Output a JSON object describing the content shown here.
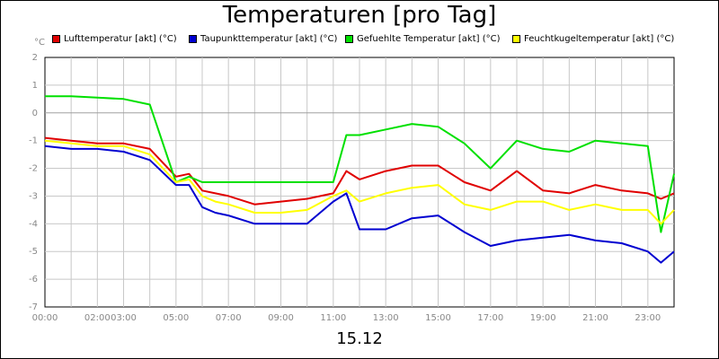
{
  "chart_data": {
    "type": "line",
    "title": "Temperaturen [pro Tag]",
    "xlabel": "15.12",
    "ylabel": "°C",
    "ylim": [
      -7,
      2
    ],
    "y_ticks": [
      "2",
      "1",
      "0",
      "-1",
      "-2",
      "-3",
      "-4",
      "-5",
      "-6",
      "-7"
    ],
    "x_ticks": [
      "00:00",
      "02:00",
      "03:00",
      "05:00",
      "07:00",
      "09:00",
      "11:00",
      "13:00",
      "15:00",
      "17:00",
      "19:00",
      "21:00",
      "23:00"
    ],
    "x_tick_hours": [
      0,
      2,
      3,
      5,
      7,
      9,
      11,
      13,
      15,
      17,
      19,
      21,
      23
    ],
    "xlim": [
      0,
      24
    ],
    "grid": true,
    "legend_position": "top",
    "x": [
      0,
      1,
      2,
      3,
      4,
      5,
      5.5,
      6,
      6.5,
      7,
      8,
      9,
      10,
      11,
      11.5,
      12,
      13,
      14,
      15,
      16,
      17,
      18,
      19,
      20,
      21,
      22,
      23,
      23.5,
      24
    ],
    "series": [
      {
        "name": "Lufttemperatur [akt] (°C)",
        "color": "#e00000",
        "values": [
          -0.9,
          -1.0,
          -1.1,
          -1.1,
          -1.3,
          -2.3,
          -2.2,
          -2.8,
          -2.9,
          -3.0,
          -3.3,
          -3.2,
          -3.1,
          -2.9,
          -2.1,
          -2.4,
          -2.1,
          -1.9,
          -1.9,
          -2.5,
          -2.8,
          -2.1,
          -2.8,
          -2.9,
          -2.6,
          -2.8,
          -2.9,
          -3.1,
          -2.9
        ]
      },
      {
        "name": "Taupunkttemperatur [akt] (°C)",
        "color": "#0000d0",
        "values": [
          -1.2,
          -1.3,
          -1.3,
          -1.4,
          -1.7,
          -2.6,
          -2.6,
          -3.4,
          -3.6,
          -3.7,
          -4.0,
          -4.0,
          -4.0,
          -3.2,
          -2.9,
          -4.2,
          -4.2,
          -3.8,
          -3.7,
          -4.3,
          -4.8,
          -4.6,
          -4.5,
          -4.4,
          -4.6,
          -4.7,
          -5.0,
          -5.4,
          -5.0
        ]
      },
      {
        "name": "Gefuehlte Temperatur [akt] (°C)",
        "color": "#00e000",
        "values": [
          0.6,
          0.6,
          0.55,
          0.5,
          0.3,
          -2.5,
          -2.3,
          -2.5,
          -2.5,
          -2.5,
          -2.5,
          -2.5,
          -2.5,
          -2.5,
          -0.8,
          -0.8,
          -0.6,
          -0.4,
          -0.5,
          -1.1,
          -2.0,
          -1.0,
          -1.3,
          -1.4,
          -1.0,
          -1.1,
          -1.2,
          -4.3,
          -2.2
        ]
      },
      {
        "name": "Feuchtkugeltemperatur [akt] (°C)",
        "color": "#ffff00",
        "values": [
          -1.0,
          -1.1,
          -1.2,
          -1.2,
          -1.5,
          -2.5,
          -2.4,
          -3.0,
          -3.2,
          -3.3,
          -3.6,
          -3.6,
          -3.5,
          -3.0,
          -2.8,
          -3.2,
          -2.9,
          -2.7,
          -2.6,
          -3.3,
          -3.5,
          -3.2,
          -3.2,
          -3.5,
          -3.3,
          -3.5,
          -3.5,
          -4.0,
          -3.5
        ]
      }
    ]
  }
}
